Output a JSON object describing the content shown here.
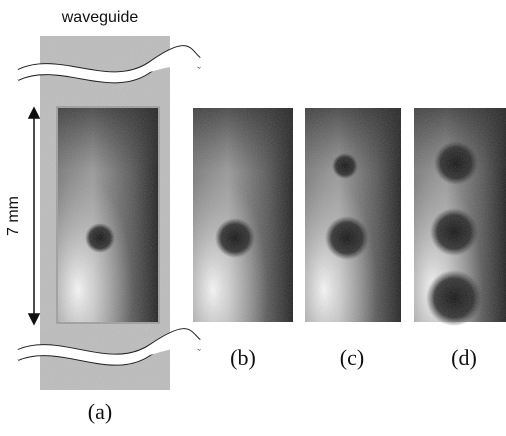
{
  "figure": {
    "waveguide_label": "waveguide",
    "scale_label": "7 mm",
    "panels": [
      {
        "label": "(a)"
      },
      {
        "label": "(b)"
      },
      {
        "label": "(c)"
      },
      {
        "label": "(d)"
      }
    ]
  }
}
